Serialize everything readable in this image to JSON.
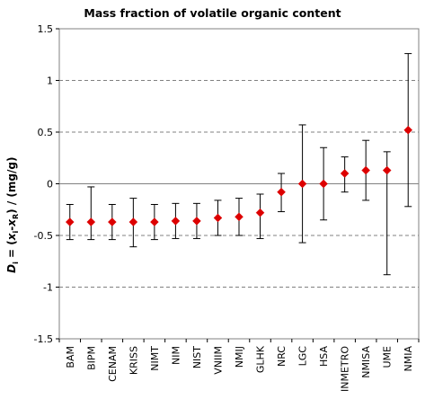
{
  "chart_data": {
    "type": "scatter",
    "title": "Mass fraction of volatile organic content",
    "ylabel": "D_i = (x_i-x_R) / (mg/g)",
    "ylim": [
      -1.5,
      1.5
    ],
    "yticks": [
      -1.5,
      -1,
      -0.5,
      0,
      0.5,
      1,
      1.5
    ],
    "ytick_labels": [
      "-1.5",
      "-1",
      "-0.5",
      "0",
      "0.5",
      "1",
      "1.5"
    ],
    "grid": "horizontal dashed at ±0.5 and ±1; solid line at 0",
    "categories": [
      "BAM",
      "BIPM",
      "CENAM",
      "KRISS",
      "NIMT",
      "NIM",
      "NIST",
      "VNIIM",
      "NMIJ",
      "GLHK",
      "NRC",
      "LGC",
      "HSA",
      "INMETRO",
      "NMISA",
      "UME",
      "NMIA"
    ],
    "series": [
      {
        "values": [
          -0.37,
          -0.37,
          -0.37,
          -0.37,
          -0.37,
          -0.36,
          -0.36,
          -0.33,
          -0.32,
          -0.28,
          -0.08,
          0.0,
          0.0,
          0.1,
          0.13,
          0.13,
          0.52
        ],
        "error_low": [
          -0.54,
          -0.54,
          -0.54,
          -0.61,
          -0.54,
          -0.53,
          -0.53,
          -0.5,
          -0.5,
          -0.53,
          -0.27,
          -0.57,
          -0.35,
          -0.08,
          -0.16,
          -0.88,
          -0.22
        ],
        "error_high": [
          -0.2,
          -0.03,
          -0.2,
          -0.14,
          -0.2,
          -0.19,
          -0.19,
          -0.16,
          -0.14,
          -0.1,
          0.1,
          0.57,
          0.35,
          0.26,
          0.42,
          0.31,
          1.26
        ]
      }
    ],
    "colors": {
      "marker": "#dd0000",
      "errorbar": "#000000",
      "grid": "#808080",
      "plot_border": "#808080"
    }
  }
}
